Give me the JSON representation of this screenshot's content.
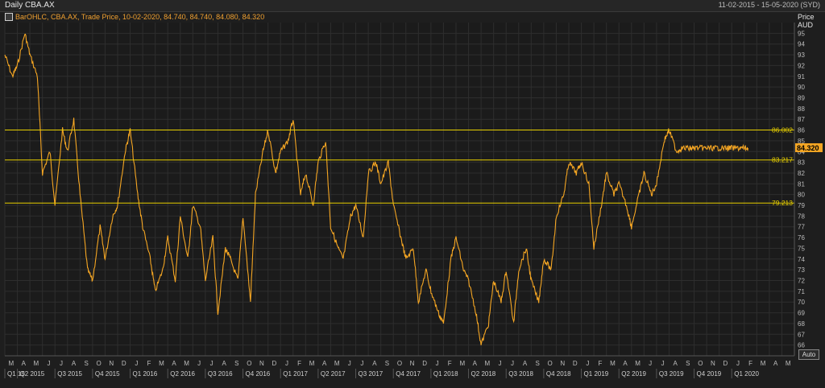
{
  "window": {
    "title": "Daily CBA.AX",
    "date_range": "11-02-2015 - 15-05-2020 (SYD)",
    "legend": "BarOHLC, CBA.AX, Trade Price, 10-02-2020, 84.740, 84.740, 84.080, 84.320",
    "price_axis_label": [
      "Price",
      "AUD"
    ],
    "auto_button": "Auto"
  },
  "colors": {
    "background": "#1e1e1e",
    "grid": "#2e2e2e",
    "price_series": "#f5a623",
    "reference_lines": "#e8d000",
    "last_price_badge": "#f5a623"
  },
  "chart_data": {
    "type": "line",
    "title": "Daily CBA.AX",
    "ylabel": "Price AUD",
    "ylim": [
      65,
      96
    ],
    "y_ticks": [
      66,
      67,
      68,
      69,
      70,
      71,
      72,
      73,
      74,
      75,
      76,
      77,
      78,
      79,
      80,
      81,
      82,
      83,
      84,
      85,
      86,
      87,
      88,
      89,
      90,
      91,
      92,
      93,
      94,
      95
    ],
    "grid": true,
    "x_month_labels": [
      "M",
      "A",
      "M",
      "J",
      "J",
      "A",
      "S",
      "O",
      "N",
      "D",
      "J",
      "F",
      "M",
      "A",
      "M",
      "J",
      "J",
      "A",
      "S",
      "O",
      "N",
      "D",
      "J",
      "F",
      "M",
      "A",
      "M",
      "J",
      "J",
      "A",
      "S",
      "O",
      "N",
      "D",
      "J",
      "F",
      "M",
      "A",
      "M",
      "J",
      "J",
      "A",
      "S",
      "O",
      "N",
      "D",
      "J",
      "F",
      "M",
      "A",
      "M",
      "J",
      "J",
      "A",
      "S",
      "O",
      "N",
      "D",
      "J",
      "F",
      "M",
      "A",
      "M"
    ],
    "x_quarter_labels": [
      "Q1 15",
      "Q2 2015",
      "Q3 2015",
      "Q4 2015",
      "Q1 2016",
      "Q2 2016",
      "Q3 2016",
      "Q4 2016",
      "Q1 2017",
      "Q2 2017",
      "Q3 2017",
      "Q4 2017",
      "Q1 2018",
      "Q2 2018",
      "Q3 2018",
      "Q4 2018",
      "Q1 2019",
      "Q2 2019",
      "Q3 2019",
      "Q4 2019",
      "Q1 2020"
    ],
    "reference_lines": [
      {
        "value": 86.002,
        "label": "86.002"
      },
      {
        "value": 83.217,
        "label": "83.217"
      },
      {
        "value": 79.213,
        "label": "79.213"
      }
    ],
    "last_price": {
      "value": 84.32,
      "label": "84.320"
    },
    "series": [
      {
        "name": "CBA.AX",
        "x_month_index": [
          0,
          0.6,
          1,
          1.6,
          2,
          2.6,
          3,
          3.6,
          4,
          4.6,
          5,
          5.5,
          6,
          6.6,
          7,
          7.6,
          8,
          8.6,
          9,
          9.6,
          10,
          10.6,
          11,
          11.6,
          12,
          12.6,
          13,
          13.6,
          14,
          14.6,
          15,
          15.6,
          16,
          16.6,
          17,
          17.6,
          18,
          18.6,
          19,
          19.6,
          20,
          20.6,
          21,
          21.6,
          22,
          22.6,
          23,
          23.6,
          24,
          24.6,
          25,
          25.6,
          26,
          26.6,
          27,
          27.6,
          28,
          28.6,
          29,
          29.6,
          30,
          30.6,
          31,
          31.6,
          32,
          32.6,
          33,
          33.6,
          34,
          34.6,
          35,
          35.6,
          36,
          36.6,
          37,
          37.6,
          38,
          38.6,
          39,
          39.6,
          40,
          40.6,
          41,
          41.6,
          42,
          42.6,
          43,
          43.6,
          44,
          44.6,
          45,
          45.6,
          46,
          46.6,
          47,
          47.6,
          48,
          48.6,
          49,
          49.6,
          50,
          50.6,
          51,
          51.6,
          52,
          52.6,
          53,
          53.6,
          54,
          54.6,
          55,
          55.6,
          56,
          56.6,
          57,
          57.6,
          58,
          58.6,
          59,
          59.3
        ],
        "values": [
          93,
          91,
          92,
          95,
          93,
          91,
          82,
          84,
          79,
          86,
          84,
          87,
          80,
          73,
          72,
          77,
          74,
          78,
          79,
          84,
          86,
          80,
          77,
          74,
          71,
          73,
          76,
          72,
          78,
          74,
          79,
          77,
          72,
          76,
          69,
          75,
          74,
          72,
          78,
          70,
          80,
          84,
          86,
          82,
          84,
          85,
          87,
          80,
          82,
          79,
          83,
          85,
          77,
          75,
          74,
          78,
          79,
          76,
          82,
          83,
          81,
          83,
          79,
          76,
          74,
          75,
          70,
          73,
          71,
          69,
          68,
          74,
          76,
          73,
          72,
          69,
          66,
          68,
          72,
          70,
          73,
          68,
          73,
          75,
          72,
          70,
          74,
          73,
          78,
          80,
          83,
          82,
          83,
          81,
          75,
          79,
          82,
          80,
          81,
          79,
          77,
          80,
          82,
          80,
          81,
          85,
          86,
          84,
          84.32,
          84.3,
          84.32,
          84.32,
          84.32,
          84.32,
          84.32,
          84.32,
          84.32,
          84.32,
          84.32,
          84.32,
          84.32
        ],
        "note": ""
      }
    ]
  }
}
